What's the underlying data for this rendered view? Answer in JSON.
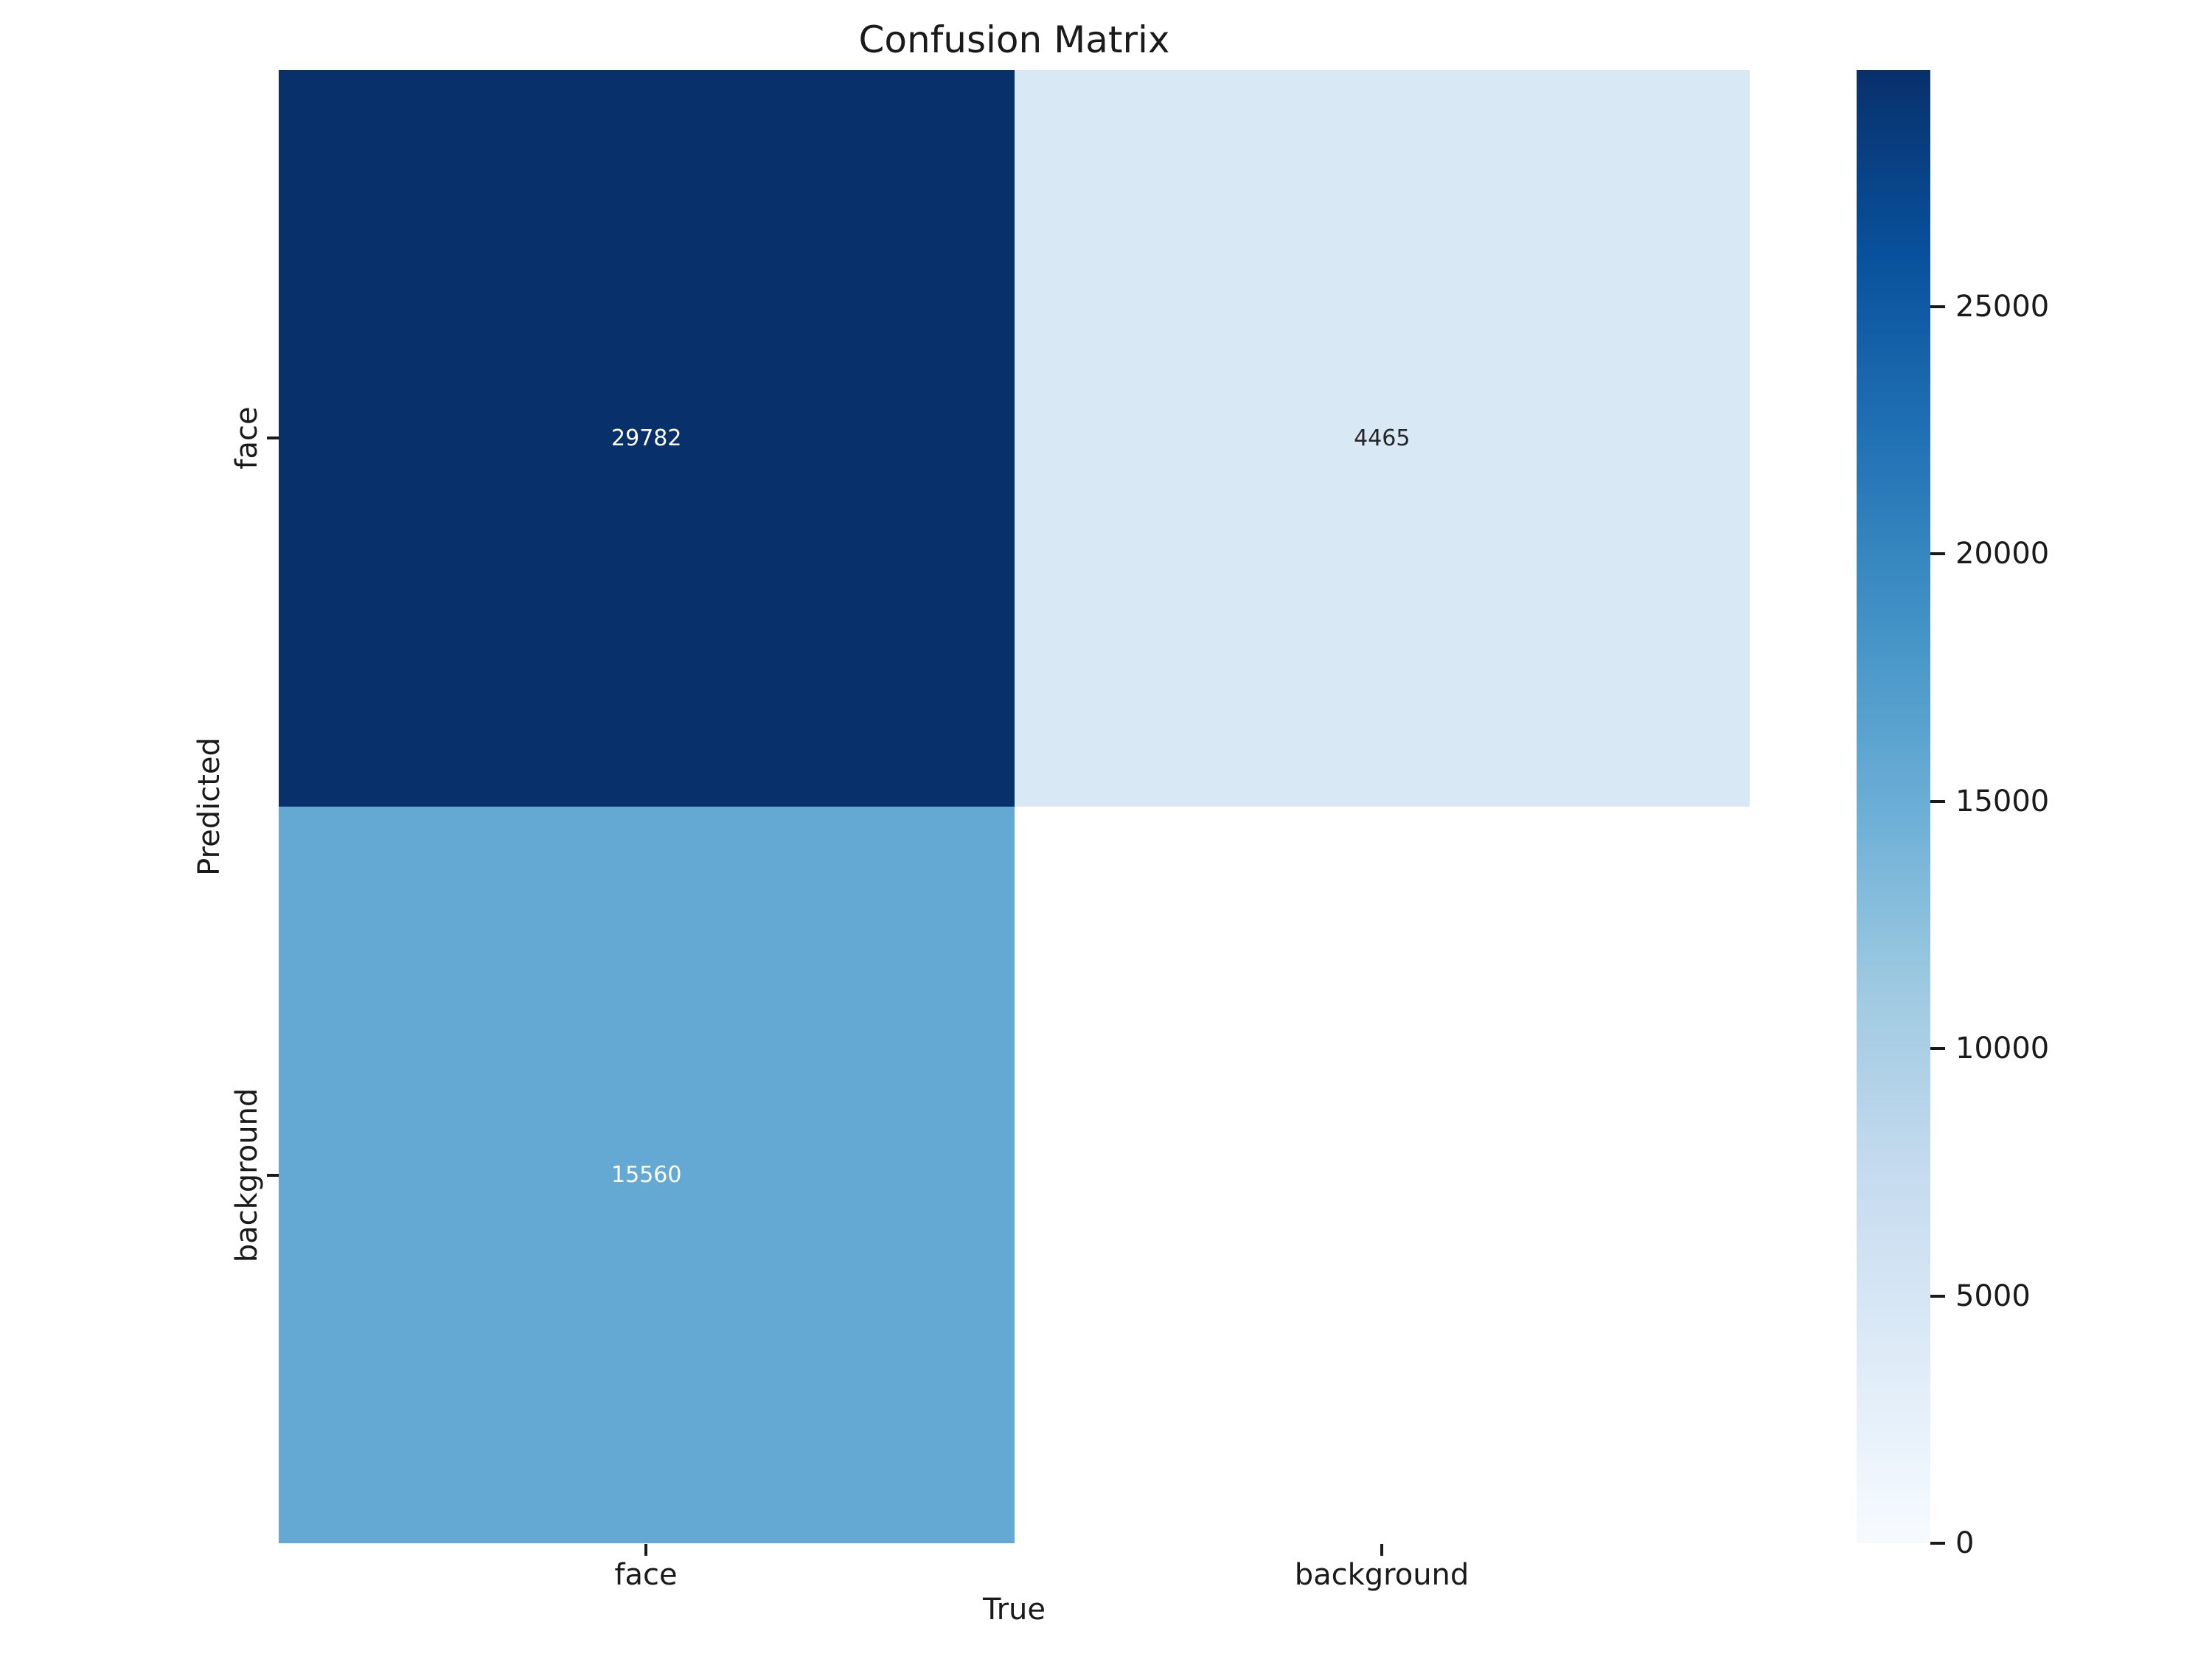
{
  "title": "Confusion Matrix",
  "x_axis": {
    "label": "True",
    "ticks": [
      "face",
      "background"
    ]
  },
  "y_axis": {
    "label": "Predicted",
    "ticks": [
      "face",
      "background"
    ]
  },
  "chart_data": {
    "type": "heatmap",
    "title": "Confusion Matrix",
    "xlabel": "True",
    "ylabel": "Predicted",
    "x_categories": [
      "face",
      "background"
    ],
    "y_categories": [
      "face",
      "background"
    ],
    "matrix": [
      [
        29782,
        4465
      ],
      [
        15560,
        null
      ]
    ],
    "colormap": "Blues",
    "vmin": 0,
    "vmax": 29782,
    "grid": false,
    "colorbar_position": "right",
    "colormap_stops": [
      "#f7fbff",
      "#deebf7",
      "#c6dbef",
      "#9ecae1",
      "#6baed6",
      "#4292c6",
      "#2171b5",
      "#08519c",
      "#08306b"
    ]
  },
  "cells": [
    {
      "row": "face",
      "col": "face",
      "label": "29782",
      "bg": "#08306b",
      "fg": "#ffffff"
    },
    {
      "row": "face",
      "col": "background",
      "label": "4465",
      "bg": "#d9e8f5",
      "fg": "#262626"
    },
    {
      "row": "background",
      "col": "face",
      "label": "15560",
      "bg": "#64a9d3",
      "fg": "#ffffff"
    },
    {
      "row": "background",
      "col": "background",
      "label": "",
      "bg": "#ffffff",
      "fg": "#262626"
    }
  ],
  "colorbar_ticks": [
    {
      "label": "25000",
      "top_pct": 16.06
    },
    {
      "label": "20000",
      "top_pct": 32.85
    },
    {
      "label": "15000",
      "top_pct": 49.63
    },
    {
      "label": "10000",
      "top_pct": 66.42
    },
    {
      "label": "5000",
      "top_pct": 83.21
    },
    {
      "label": "0",
      "top_pct": 100
    }
  ],
  "colors": {
    "figure_background": "#ffffff",
    "text": "#1a1a1a",
    "cell_max": "#08306b",
    "cell_mid": "#64a9d3",
    "cell_low": "#d9e8f5",
    "cell_empty": "#ffffff"
  }
}
